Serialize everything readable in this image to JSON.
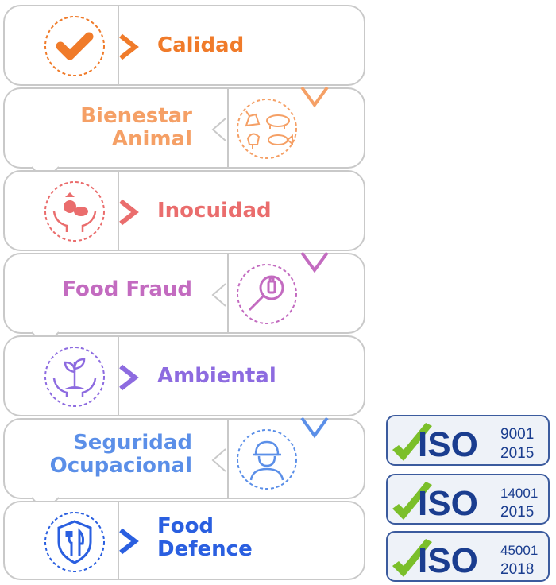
{
  "items": [
    {
      "label": "Calidad",
      "color": "#f07b2a",
      "icon": "check-icon"
    },
    {
      "label": "Bienestar\nAnimal",
      "color": "#f5a066",
      "icon": "farm-animals-icon"
    },
    {
      "label": "Inocuidad",
      "color": "#ea6d6d",
      "icon": "food-hands-icon"
    },
    {
      "label": "Food Fraud",
      "color": "#c36bc0",
      "icon": "magnifier-bottle-icon"
    },
    {
      "label": "Ambiental",
      "color": "#8d6be0",
      "icon": "plant-hands-icon"
    },
    {
      "label": "Seguridad\nOcupacional",
      "color": "#5b8fe8",
      "icon": "worker-helmet-icon"
    },
    {
      "label": "Food\nDefence",
      "color": "#2a5fe0",
      "icon": "shield-cutlery-icon"
    }
  ],
  "certifications": [
    {
      "name": "ISO",
      "code": "9001",
      "year": "2015"
    },
    {
      "name": "ISO",
      "code": "14001",
      "year": "2015"
    },
    {
      "name": "ISO",
      "code": "45001",
      "year": "2018"
    }
  ],
  "iso_colors": {
    "blue": "#1a3d8f",
    "green": "#7bbf2a",
    "frame": "#3b5b9e"
  }
}
